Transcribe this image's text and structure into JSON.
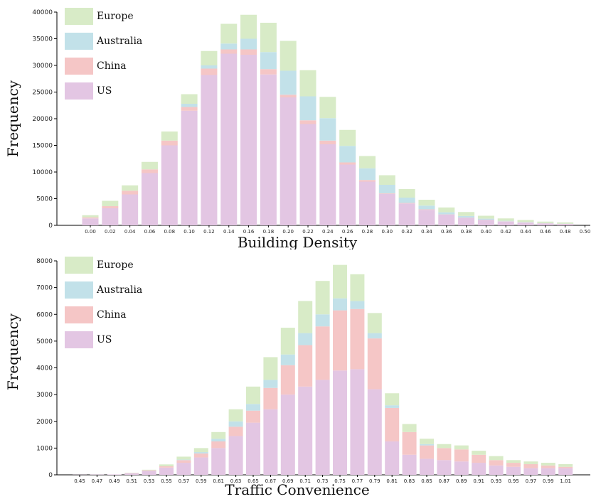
{
  "colors": {
    "Europe": "#d8ebc7",
    "Australia": "#c2e1e9",
    "China": "#f5c6c6",
    "US": "#e3c6e3"
  },
  "legend_order": [
    "Europe",
    "Australia",
    "China",
    "US"
  ],
  "chart_data": [
    {
      "type": "bar",
      "stacked": true,
      "title": "",
      "xlabel": "Building Density",
      "ylabel": "Frequency",
      "ylim": [
        0,
        40000
      ],
      "yticks": [
        "0",
        "5000",
        "10000",
        "15000",
        "20000",
        "25000",
        "30000",
        "35000",
        "40000"
      ],
      "legend_position": "top-left",
      "grid": false,
      "categories": [
        "0.00",
        "0.02",
        "0.04",
        "0.06",
        "0.08",
        "0.10",
        "0.12",
        "0.14",
        "0.16",
        "0.18",
        "0.20",
        "0.22",
        "0.24",
        "0.26",
        "0.28",
        "0.30",
        "0.32",
        "0.34",
        "0.36",
        "0.38",
        "0.40",
        "0.42",
        "0.44",
        "0.46",
        "0.48",
        "0.50"
      ],
      "series": [
        {
          "name": "US",
          "values": [
            1300,
            3200,
            5800,
            9800,
            15000,
            21500,
            28200,
            32200,
            32000,
            28300,
            24000,
            19000,
            15200,
            11400,
            8200,
            5900,
            4100,
            2900,
            2000,
            1400,
            1000,
            700,
            500,
            350,
            250,
            0
          ]
        },
        {
          "name": "China",
          "values": [
            200,
            400,
            700,
            700,
            900,
            700,
            1200,
            800,
            1000,
            1000,
            500,
            700,
            700,
            400,
            300,
            100,
            100,
            100,
            50,
            50,
            50,
            50,
            50,
            30,
            20,
            0
          ]
        },
        {
          "name": "Australia",
          "values": [
            0,
            0,
            0,
            0,
            0,
            600,
            600,
            1100,
            2000,
            3200,
            4500,
            4500,
            4200,
            3100,
            2200,
            1600,
            1000,
            700,
            400,
            300,
            200,
            100,
            80,
            50,
            30,
            0
          ]
        },
        {
          "name": "Europe",
          "values": [
            400,
            1000,
            1000,
            1400,
            1700,
            1800,
            2700,
            3700,
            4500,
            5500,
            5600,
            4900,
            4000,
            3000,
            2300,
            1800,
            1600,
            1100,
            900,
            750,
            550,
            450,
            370,
            270,
            250,
            0
          ]
        }
      ]
    },
    {
      "type": "bar",
      "stacked": true,
      "title": "",
      "xlabel": "Traffic Convenience",
      "ylabel": "Frequency",
      "ylim": [
        0,
        8000
      ],
      "yticks": [
        "0",
        "1000",
        "2000",
        "3000",
        "4000",
        "5000",
        "6000",
        "7000",
        "8000"
      ],
      "legend_position": "top-left",
      "grid": false,
      "categories": [
        "0.45",
        "0.47",
        "0.49",
        "0.51",
        "0.53",
        "0.55",
        "0.57",
        "0.59",
        "0.61",
        "0.63",
        "0.65",
        "0.67",
        "0.69",
        "0.71",
        "0.73",
        "0.75",
        "0.77",
        "0.79",
        "0.81",
        "0.83",
        "0.85",
        "0.87",
        "0.89",
        "0.91",
        "0.93",
        "0.95",
        "0.97",
        "0.99",
        "1.01"
      ],
      "series": [
        {
          "name": "US",
          "values": [
            5,
            10,
            15,
            60,
            150,
            270,
            450,
            650,
            1000,
            1450,
            1950,
            2450,
            3000,
            3300,
            3550,
            3900,
            3950,
            3200,
            1250,
            750,
            600,
            550,
            500,
            450,
            350,
            300,
            250,
            250,
            250
          ]
        },
        {
          "name": "China",
          "values": [
            0,
            0,
            0,
            10,
            20,
            50,
            100,
            150,
            250,
            350,
            450,
            800,
            1100,
            1550,
            2000,
            2250,
            2250,
            1900,
            1250,
            850,
            500,
            450,
            450,
            300,
            200,
            150,
            150,
            100,
            50
          ]
        },
        {
          "name": "Australia",
          "values": [
            0,
            0,
            0,
            0,
            0,
            0,
            20,
            50,
            100,
            200,
            250,
            300,
            400,
            450,
            450,
            450,
            300,
            200,
            100,
            0,
            50,
            0,
            0,
            0,
            0,
            0,
            0,
            0,
            0
          ]
        },
        {
          "name": "Europe",
          "values": [
            0,
            0,
            0,
            10,
            20,
            70,
            110,
            150,
            250,
            450,
            650,
            850,
            1000,
            1200,
            1250,
            1250,
            1000,
            750,
            450,
            300,
            200,
            150,
            150,
            150,
            150,
            100,
            100,
            100,
            100
          ]
        }
      ]
    }
  ]
}
